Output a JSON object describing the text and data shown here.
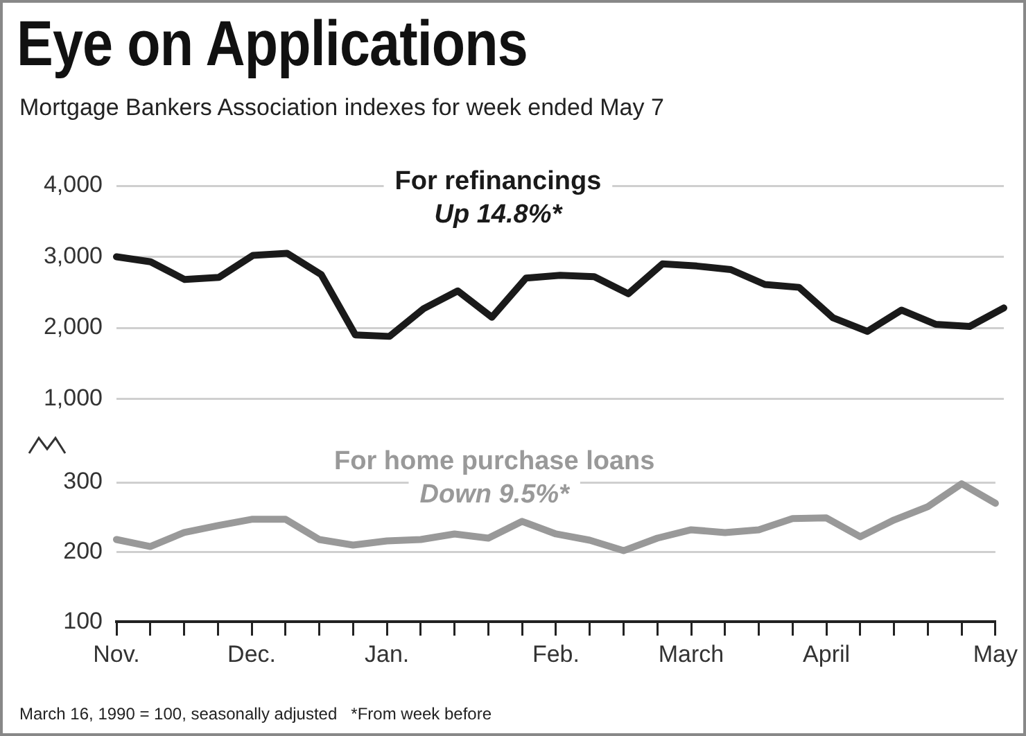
{
  "chart_data": [
    {
      "type": "line",
      "title": "Eye on Applications",
      "subtitle": "Mortgage Bankers Association indexes for week ended May 7",
      "categories": [
        null,
        null,
        null,
        null,
        null,
        null,
        null,
        null,
        null,
        null,
        null,
        null,
        null,
        null,
        null,
        null,
        null,
        null,
        null,
        null,
        null,
        null,
        null,
        null,
        null,
        null,
        null
      ],
      "series": [
        {
          "name": "For refinancings",
          "color": "#1a1a1a",
          "values": [
            3000,
            2930,
            2680,
            2710,
            3020,
            3050,
            2750,
            1900,
            1880,
            2270,
            2520,
            2150,
            2700,
            2740,
            2720,
            2480,
            2900,
            2870,
            2820,
            2610,
            2570,
            2140,
            1950,
            2250,
            2050,
            2020,
            2280
          ]
        }
      ],
      "ylim": [
        1000,
        4000
      ],
      "yticks": [
        {
          "value": 1000,
          "label": "1,000"
        },
        {
          "value": 2000,
          "label": "2,000"
        },
        {
          "value": 3000,
          "label": "3,000"
        },
        {
          "value": 4000,
          "label": "4,000"
        }
      ],
      "grid": "y",
      "legend": false,
      "marker": "none",
      "line_style": "solid",
      "tick_labels": "y",
      "annotations": [
        "Up 14.8%*"
      ]
    },
    {
      "type": "line",
      "categories": [
        "Nov.",
        null,
        null,
        null,
        "Dec.",
        null,
        null,
        null,
        "Jan.",
        null,
        null,
        null,
        null,
        "Feb.",
        null,
        null,
        null,
        "March",
        null,
        null,
        null,
        "April",
        null,
        null,
        null,
        null,
        "May"
      ],
      "series": [
        {
          "name": "For home purchase loans",
          "color": "#999999",
          "values": [
            218,
            208,
            228,
            238,
            247,
            247,
            218,
            210,
            216,
            218,
            226,
            220,
            244,
            226,
            217,
            202,
            220,
            232,
            228,
            232,
            248,
            249,
            222,
            246,
            265,
            298,
            270
          ]
        }
      ],
      "ylim": [
        100,
        300
      ],
      "yticks": [
        100,
        200,
        300
      ],
      "grid": "y",
      "legend": false,
      "marker": "none",
      "line_style": "solid",
      "annotations": [
        "Down 9.5%*",
        "March 16, 1990 = 100, seasonally adjusted   *From week before"
      ]
    }
  ]
}
